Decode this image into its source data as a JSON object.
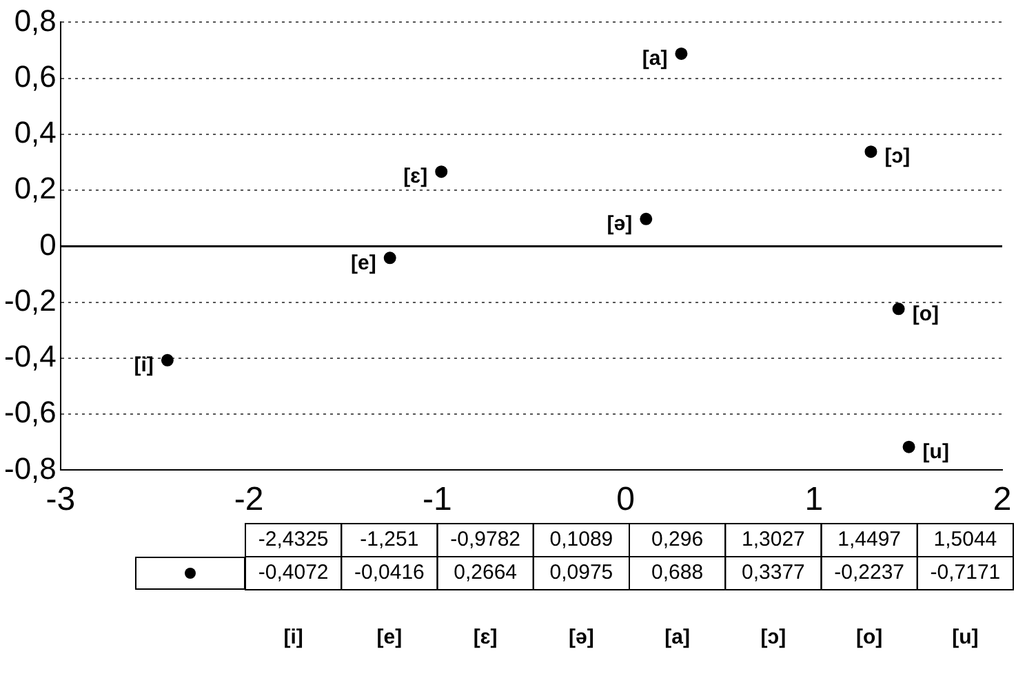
{
  "chart_data": {
    "type": "scatter",
    "x": [
      -2.4325,
      -1.251,
      -0.9782,
      0.1089,
      0.296,
      1.3027,
      1.4497,
      1.5044
    ],
    "series": [
      {
        "color": "#000000",
        "values": [
          -0.4072,
          -0.0416,
          0.2664,
          0.0975,
          0.688,
          0.3377,
          -0.2237,
          -0.7171
        ]
      }
    ],
    "xlim": [
      -3,
      2
    ],
    "xticks": [
      -3,
      -2,
      -1,
      0,
      1,
      2
    ],
    "ylim": [
      -0.8,
      0.8
    ],
    "yticks": [
      {
        "value": -0.8,
        "label": "-0,8"
      },
      {
        "value": -0.6,
        "label": "-0,6"
      },
      {
        "value": -0.4,
        "label": "-0,4"
      },
      {
        "value": -0.2,
        "label": "-0,2"
      },
      {
        "value": 0,
        "label": "0"
      },
      {
        "value": 0.2,
        "label": "0,2"
      },
      {
        "value": 0.4,
        "label": "0,4"
      },
      {
        "value": 0.6,
        "label": "0,6"
      },
      {
        "value": 0.8,
        "label": "0,8"
      }
    ],
    "annotations": [
      {
        "text": "[i]",
        "x": -2.4325,
        "y": -0.4072
      },
      {
        "text": "[e]",
        "x": -1.251,
        "y": -0.0416
      },
      {
        "text": "[ɛ]",
        "x": -0.9782,
        "y": 0.2664
      },
      {
        "text": "[ə]",
        "x": 0.1089,
        "y": 0.0975
      },
      {
        "text": "[a]",
        "x": 0.296,
        "y": 0.688
      },
      {
        "text": "[ɔ]",
        "x": 1.3027,
        "y": 0.3377
      },
      {
        "text": "[o]",
        "x": 1.4497,
        "y": -0.2237
      },
      {
        "text": "[u]",
        "x": 1.5044,
        "y": -0.7171
      },
      "-2,4325",
      "-1,251",
      "-0,9782",
      "0,1089",
      "0,296",
      "1,3027",
      "1,4497",
      "1,5044",
      "-0,4072",
      "-0,0416",
      "0,2664",
      "0,0975",
      "0,688",
      "0,3377",
      "-0,2237",
      "-0,7171"
    ],
    "ref_lines": [
      {
        "axis": "y",
        "value": 0,
        "color": "#000000",
        "line_style": "solid"
      }
    ],
    "grid": "y",
    "marker": "circle",
    "legend": false
  }
}
